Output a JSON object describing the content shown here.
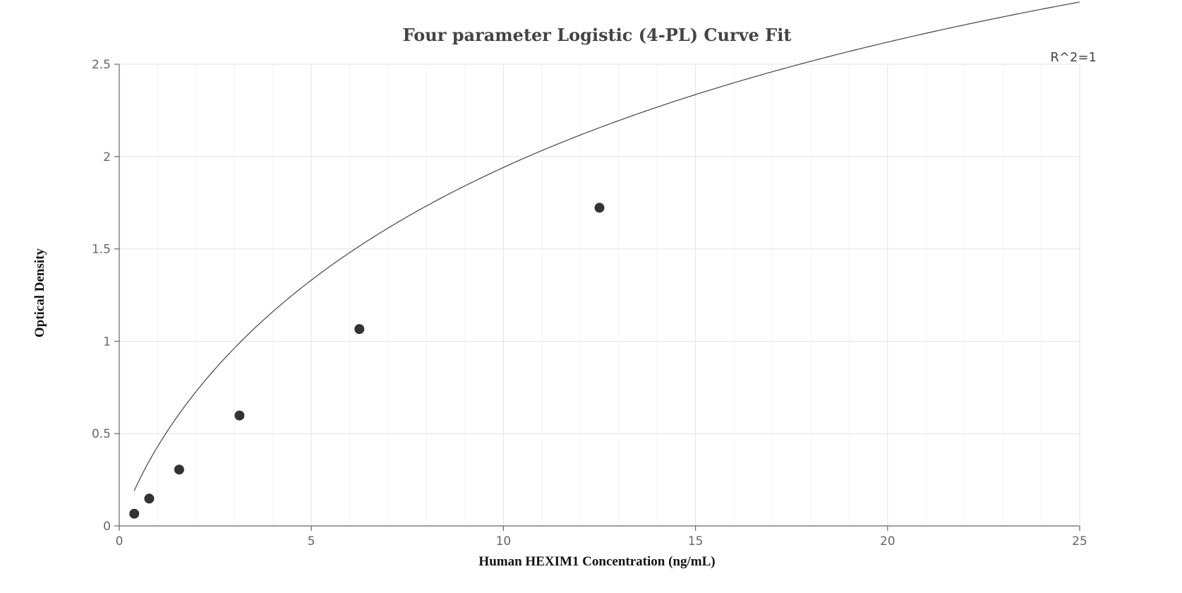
{
  "chart_data": {
    "type": "scatter",
    "title": "Four parameter Logistic (4-PL) Curve Fit",
    "xlabel": "Human HEXIM1 Concentration (ng/mL)",
    "ylabel": "Optical Density",
    "xlim": [
      0,
      25
    ],
    "ylim": [
      0,
      2.5
    ],
    "x_ticks": [
      0,
      5,
      10,
      15,
      20,
      25
    ],
    "y_ticks": [
      0,
      0.5,
      1,
      1.5,
      2,
      2.5
    ],
    "grid": true,
    "annotation": "R^2=1",
    "points": [
      {
        "x": 0.39,
        "y": 0.066
      },
      {
        "x": 0.78,
        "y": 0.148
      },
      {
        "x": 1.56,
        "y": 0.305
      },
      {
        "x": 3.13,
        "y": 0.598
      },
      {
        "x": 6.25,
        "y": 1.066
      },
      {
        "x": 12.5,
        "y": 1.723
      }
    ],
    "fit": {
      "model": "4PL",
      "a": -0.045,
      "b": 0.8,
      "c": 16.46,
      "d": 4.9
    },
    "colors": {
      "points": "#333333",
      "curve": "#444444",
      "grid": "#dfe3ea"
    }
  }
}
